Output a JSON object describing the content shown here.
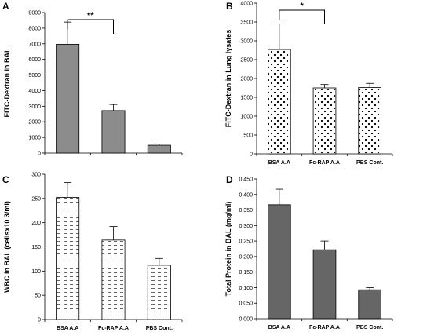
{
  "chart_data": [
    {
      "panel_label": "A",
      "type": "bar",
      "categories": [
        "",
        "",
        ""
      ],
      "values": [
        6970,
        2720,
        500
      ],
      "errors": [
        1420,
        390,
        80
      ],
      "ylabel": "FITC-Dextran in BAL",
      "ylim": [
        0,
        9000
      ],
      "yticks": [
        "0",
        "1000",
        "2000",
        "3000",
        "4000",
        "5000",
        "6000",
        "7000",
        "8000",
        "9000"
      ],
      "fill": "solid",
      "color": "#8c8c8c",
      "significance": {
        "from": 0,
        "to": 1,
        "label": "**"
      }
    },
    {
      "panel_label": "B",
      "type": "bar",
      "categories": [
        "BSA A.A",
        "Fc-RAP A.A",
        "PBS Cont."
      ],
      "values": [
        2770,
        1750,
        1760
      ],
      "errors": [
        680,
        90,
        110
      ],
      "ylabel": "FITC-Dextran in Lung lysates",
      "ylim": [
        0,
        4000
      ],
      "yticks": [
        "0",
        "500",
        "1000",
        "1500",
        "2000",
        "2500",
        "3000",
        "3500",
        "4000"
      ],
      "fill": "dots",
      "color": "#000000",
      "significance": {
        "from": 0,
        "to": 1,
        "label": "*"
      }
    },
    {
      "panel_label": "C",
      "type": "bar",
      "categories": [
        "BSA A.A",
        "Fc-RAP A.A",
        "PBS Cont."
      ],
      "values": [
        252,
        164,
        112
      ],
      "errors": [
        31,
        28,
        14
      ],
      "ylabel": "WBC in BAL (cellsx10 3/ml)",
      "ylim": [
        0,
        300
      ],
      "yticks": [
        "0",
        "50",
        "100",
        "150",
        "200",
        "250",
        "300"
      ],
      "fill": "dashes",
      "color": "#555555"
    },
    {
      "panel_label": "D",
      "type": "bar",
      "categories": [
        "BSA A.A",
        "Fc-RAP A.A",
        "PBS Cont."
      ],
      "values": [
        0.367,
        0.222,
        0.093
      ],
      "errors": [
        0.05,
        0.028,
        0.007
      ],
      "ylabel": "Total Protein in BAL (mg/ml)",
      "ylim": [
        0,
        0.45
      ],
      "yticks": [
        "0.000",
        "0.050",
        "0.100",
        "0.150",
        "0.200",
        "0.250",
        "0.300",
        "0.350",
        "0.400",
        "0.450"
      ],
      "fill": "solid",
      "color": "#666666"
    }
  ]
}
